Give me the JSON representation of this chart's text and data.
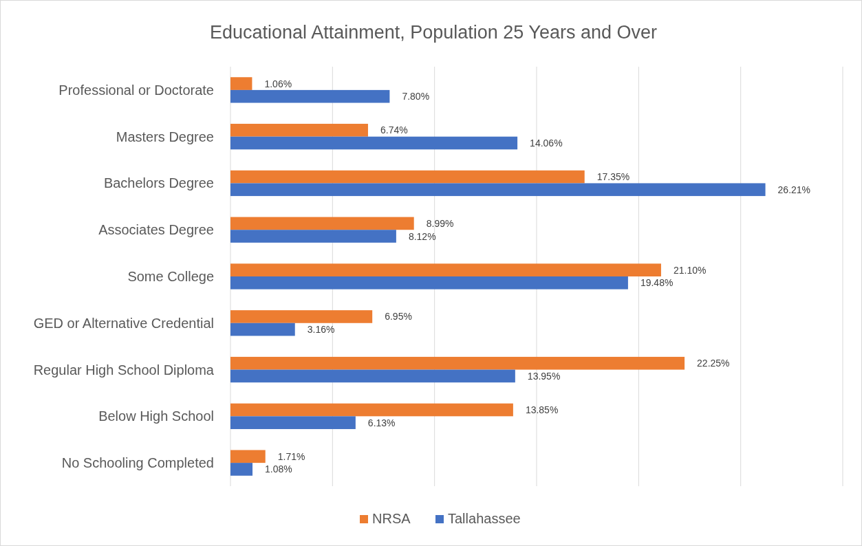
{
  "chart_data": {
    "type": "bar",
    "orientation": "horizontal",
    "title": "Educational Attainment, Population 25 Years and Over",
    "categories": [
      "Professional or Doctorate",
      "Masters Degree",
      "Bachelors Degree",
      "Associates Degree",
      "Some College",
      "GED or Alternative Credential",
      "Regular High School Diploma",
      "Below High School",
      "No Schooling Completed"
    ],
    "series": [
      {
        "name": "NRSA",
        "color": "#ed7d31",
        "values": [
          1.06,
          6.74,
          17.35,
          8.99,
          21.1,
          6.95,
          22.25,
          13.85,
          1.71
        ],
        "value_labels": [
          "1.06%",
          "6.74%",
          "17.35%",
          "8.99%",
          "21.10%",
          "6.95%",
          "22.25%",
          "13.85%",
          "1.71%"
        ]
      },
      {
        "name": "Tallahassee",
        "color": "#4472c4",
        "values": [
          7.8,
          14.06,
          26.21,
          8.12,
          19.48,
          3.16,
          13.95,
          6.13,
          1.08
        ],
        "value_labels": [
          "7.80%",
          "14.06%",
          "26.21%",
          "8.12%",
          "19.48%",
          "3.16%",
          "13.95%",
          "6.13%",
          "1.08%"
        ]
      }
    ],
    "xlim": [
      0,
      30
    ],
    "xticks": [
      {
        "value": 0,
        "label": null
      },
      {
        "value": 5,
        "label": null
      },
      {
        "value": 10,
        "label": null
      },
      {
        "value": 15,
        "label": null
      },
      {
        "value": 20,
        "label": null
      },
      {
        "value": 25,
        "label": null
      },
      {
        "value": 30,
        "label": null
      }
    ],
    "tick_labels": "y",
    "grid": "x",
    "legend": "bottom"
  }
}
